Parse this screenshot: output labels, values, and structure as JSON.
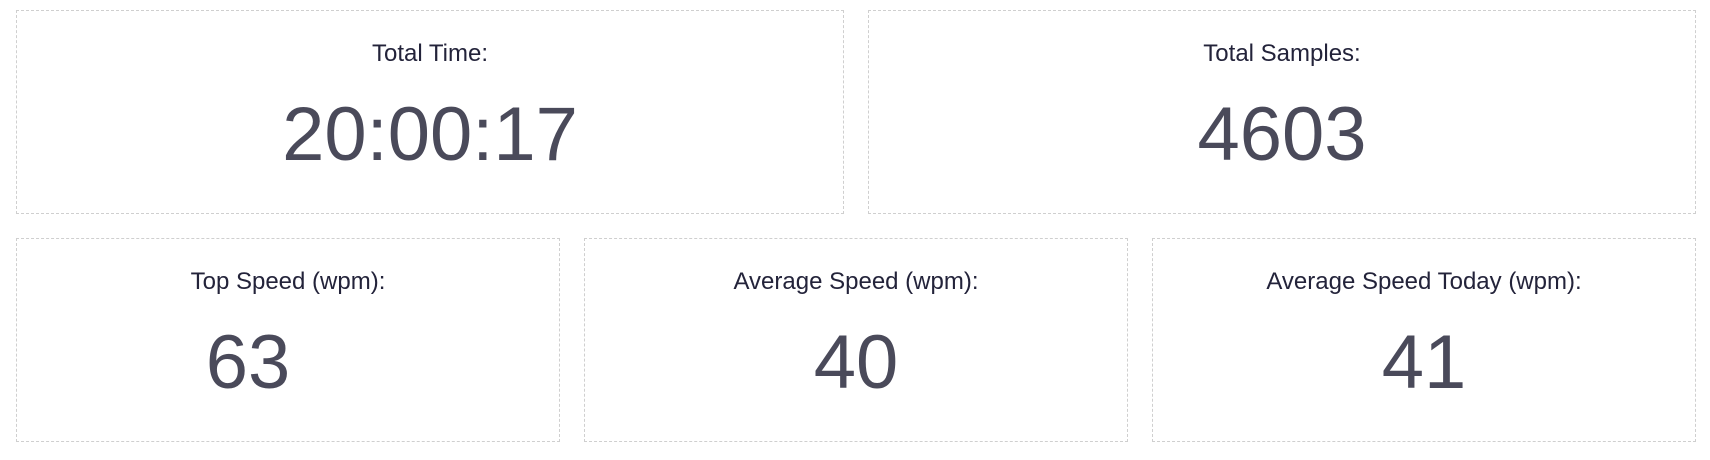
{
  "stats": {
    "total_time": {
      "label": "Total Time:",
      "value": "20:00:17"
    },
    "total_samples": {
      "label": "Total Samples:",
      "value": "4603"
    },
    "top_speed": {
      "label": "Top Speed (wpm):",
      "value": "63"
    },
    "average_speed": {
      "label": "Average Speed (wpm):",
      "value": "40"
    },
    "average_speed_today": {
      "label": "Average Speed Today (wpm):",
      "value": "41"
    }
  },
  "colors": {
    "label_text": "#23233a",
    "value_text": "#4a4a5a",
    "card_border": "#cfcfcf",
    "background": "#ffffff"
  }
}
